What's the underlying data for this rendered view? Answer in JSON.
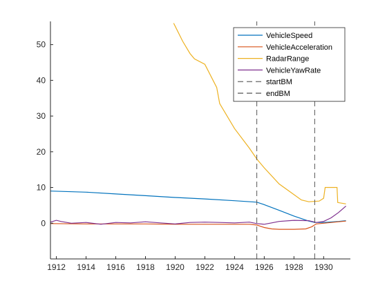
{
  "chart_data": {
    "type": "line",
    "title": "",
    "xlabel": "",
    "ylabel": "",
    "xlim": [
      1911.6,
      1931.8
    ],
    "ylim": [
      -10,
      56.5
    ],
    "xticks": [
      1912,
      1914,
      1916,
      1918,
      1920,
      1922,
      1924,
      1926,
      1928,
      1930
    ],
    "xtick_labels": [
      "1912",
      "1914",
      "1916",
      "1918",
      "1920",
      "1922",
      "1924",
      "1926",
      "1928",
      "1930"
    ],
    "yticks": [
      0,
      10,
      20,
      30,
      40,
      50
    ],
    "ytick_labels": [
      "0",
      "10",
      "20",
      "30",
      "40",
      "50"
    ],
    "grid": false,
    "legend_position": "top-right",
    "series": [
      {
        "name": "VehicleSpeed",
        "color": "#0072BD",
        "style": "solid",
        "x": [
          1911.6,
          1914,
          1916,
          1918,
          1920,
          1922,
          1924,
          1925.5,
          1926,
          1927,
          1928,
          1929,
          1929.4,
          1930,
          1931,
          1931.5
        ],
        "y": [
          9.0,
          8.7,
          8.2,
          7.7,
          7.2,
          6.8,
          6.3,
          5.9,
          5.2,
          3.6,
          2.0,
          0.6,
          0.2,
          0.2,
          0.5,
          0.7
        ]
      },
      {
        "name": "VehicleAcceleration",
        "color": "#D95319",
        "style": "solid",
        "x": [
          1911.6,
          1914,
          1916,
          1918,
          1920,
          1922,
          1924,
          1925,
          1925.5,
          1926,
          1926.5,
          1927,
          1928,
          1928.8,
          1929.2,
          1929.5,
          1930,
          1931,
          1931.5
        ],
        "y": [
          -0.1,
          -0.2,
          -0.2,
          -0.2,
          -0.3,
          -0.3,
          -0.3,
          -0.3,
          -0.5,
          -1.2,
          -1.6,
          -1.7,
          -1.7,
          -1.6,
          -1.0,
          -0.2,
          0.0,
          0.4,
          0.6
        ]
      },
      {
        "name": "RadarRange",
        "color": "#EDB120",
        "style": "solid",
        "x": [
          1919.9,
          1920.5,
          1921,
          1921.3,
          1922,
          1922.8,
          1923,
          1924,
          1925,
          1925.5,
          1926,
          1927,
          1928,
          1928.5,
          1929,
          1929.7,
          1930,
          1930.1,
          1930.3,
          1930.9,
          1930.95,
          1931.5
        ],
        "y": [
          56.0,
          51.0,
          47.5,
          46.0,
          44.5,
          38.0,
          33.5,
          26.5,
          21.0,
          18.0,
          15.5,
          11.0,
          8.0,
          6.5,
          6.0,
          6.2,
          7.0,
          10.0,
          10.0,
          10.0,
          5.8,
          5.4
        ]
      },
      {
        "name": "VehicleYawRate",
        "color": "#7E2F8E",
        "style": "solid",
        "x": [
          1911.6,
          1912,
          1912.3,
          1913,
          1914,
          1915,
          1916,
          1917,
          1918,
          1919,
          1920,
          1921,
          1922,
          1923,
          1924,
          1925,
          1925.5,
          1926,
          1926.5,
          1927,
          1928,
          1929,
          1929.5,
          1930,
          1930.5,
          1931,
          1931.5
        ],
        "y": [
          0.3,
          0.8,
          0.5,
          0.0,
          0.2,
          -0.3,
          0.2,
          0.1,
          0.4,
          0.1,
          -0.2,
          0.2,
          0.3,
          0.2,
          0.1,
          0.3,
          -0.1,
          -0.3,
          0.1,
          0.5,
          0.8,
          0.7,
          0.2,
          0.5,
          1.5,
          3.0,
          4.8
        ]
      },
      {
        "name": "startBM",
        "color": "#555555",
        "style": "dashed",
        "x": [
          1925.5,
          1925.5
        ],
        "y": [
          -10,
          56.5
        ]
      },
      {
        "name": "endBM",
        "color": "#555555",
        "style": "dashed",
        "x": [
          1929.4,
          1929.4
        ],
        "y": [
          -10,
          56.5
        ]
      }
    ]
  }
}
